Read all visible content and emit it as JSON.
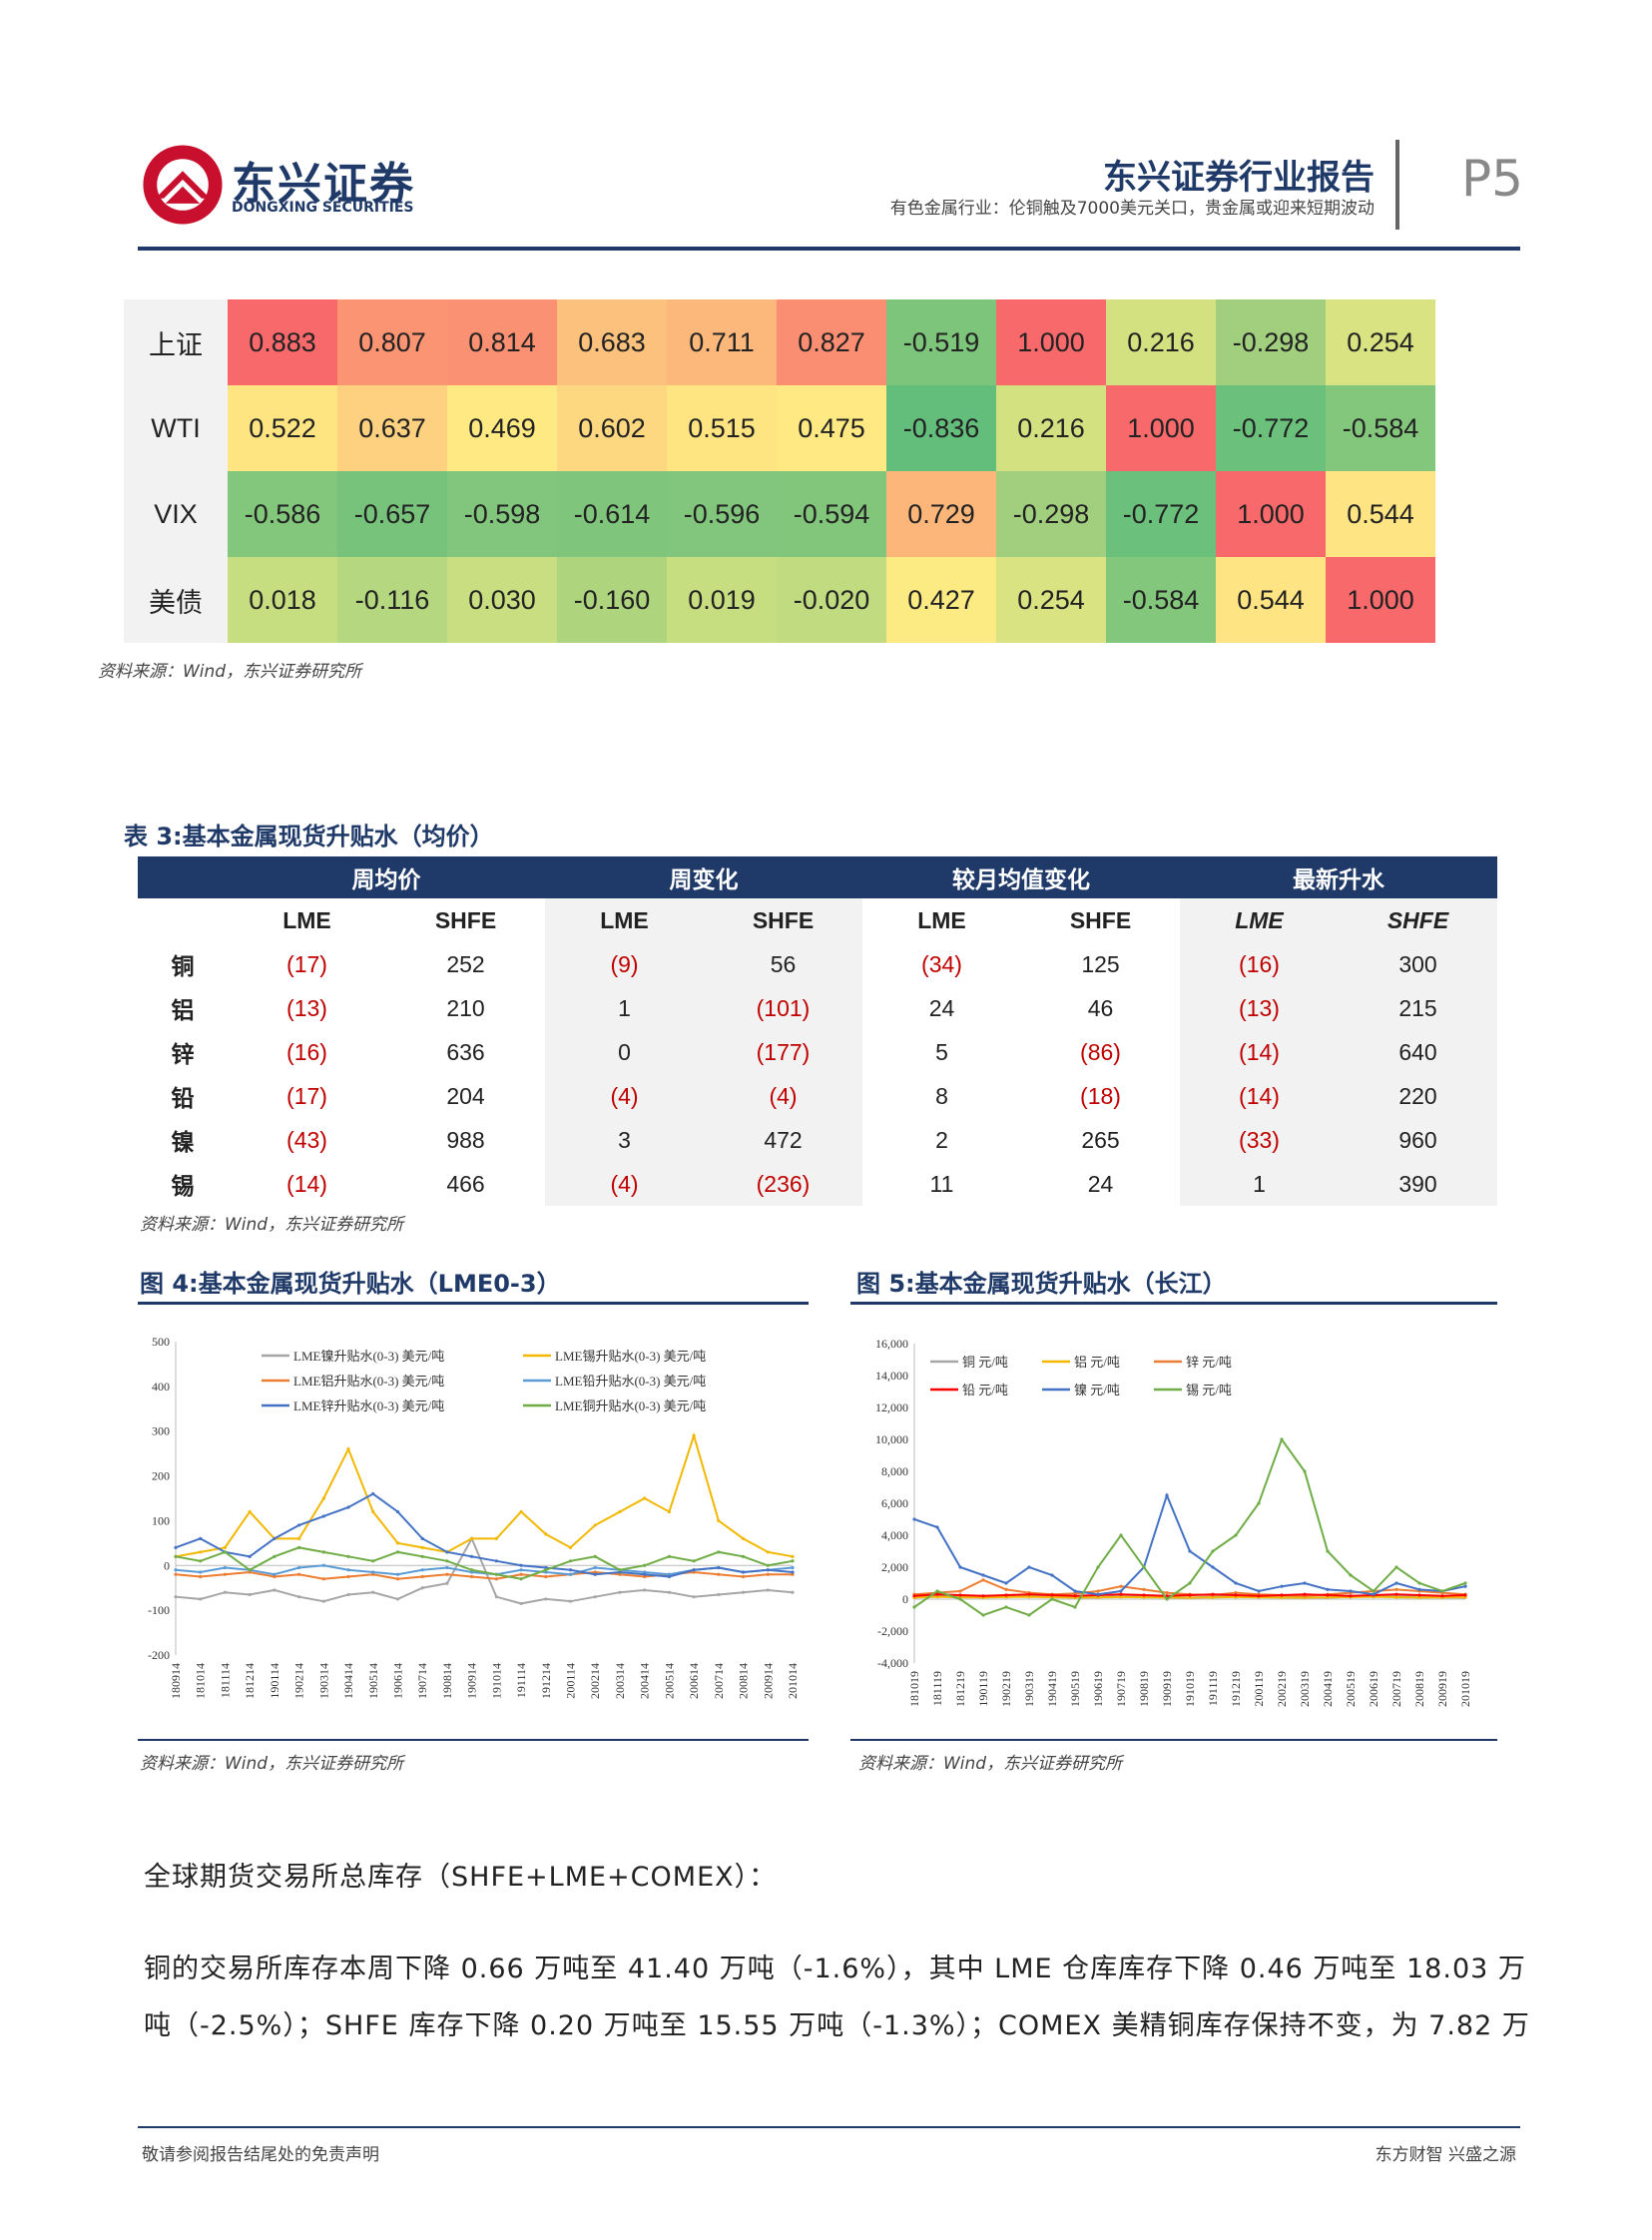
{
  "header": {
    "logo_cn": "东兴证券",
    "logo_en": "DONGXING SECURITIES",
    "report_title": "东兴证券行业报告",
    "report_subtitle": "有色金属行业：伦铜触及7000美元关口，贵金属或迎来短期波动",
    "page_number": "P5"
  },
  "correlation": {
    "rows": [
      {
        "label": "上证",
        "values": [
          "0.883",
          "0.807",
          "0.814",
          "0.683",
          "0.711",
          "0.827",
          "-0.519",
          "1.000",
          "0.216",
          "-0.298",
          "0.254"
        ],
        "colors": [
          "#f8696b",
          "#fa9473",
          "#fa9172",
          "#fcc17c",
          "#fbb87a",
          "#fa8e72",
          "#7ec57c",
          "#f8696b",
          "#d4e180",
          "#a2cf7e",
          "#d9e381"
        ]
      },
      {
        "label": "WTI",
        "values": [
          "0.522",
          "0.637",
          "0.469",
          "0.602",
          "0.515",
          "0.475",
          "-0.836",
          "0.216",
          "1.000",
          "-0.772",
          "-0.584"
        ],
        "colors": [
          "#fee582",
          "#fdd17f",
          "#fee983",
          "#fed880",
          "#fee582",
          "#fee983",
          "#63be7b",
          "#d4e180",
          "#f8696b",
          "#6bc07b",
          "#83c77c"
        ]
      },
      {
        "label": "VIX",
        "values": [
          "-0.586",
          "-0.657",
          "-0.598",
          "-0.614",
          "-0.596",
          "-0.594",
          "0.729",
          "-0.298",
          "-0.772",
          "1.000",
          "0.544"
        ],
        "colors": [
          "#83c77c",
          "#78c37b",
          "#81c67c",
          "#7fc57c",
          "#81c67c",
          "#82c67c",
          "#fcb67a",
          "#a2cf7e",
          "#6bc07b",
          "#f8696b",
          "#fee482"
        ]
      },
      {
        "label": "美债",
        "values": [
          "0.018",
          "-0.116",
          "0.030",
          "-0.160",
          "0.019",
          "-0.020",
          "0.427",
          "0.254",
          "-0.584",
          "0.544",
          "1.000"
        ],
        "colors": [
          "#c6dd80",
          "#b4d77f",
          "#c8de80",
          "#aed57e",
          "#c6dd80",
          "#c1db80",
          "#fcea83",
          "#d9e381",
          "#83c77c",
          "#fee482",
          "#f8696b"
        ]
      }
    ],
    "source": "资料来源：Wind，东兴证券研究所"
  },
  "table3": {
    "title": "表 3:基本金属现货升贴水（均价）",
    "groups": [
      "周均价",
      "周变化",
      "较月均值变化",
      "最新升水"
    ],
    "subheaders": [
      "LME",
      "SHFE",
      "LME",
      "SHFE",
      "LME",
      "SHFE",
      "LME",
      "SHFE"
    ],
    "rows": [
      {
        "name": "铜",
        "cells": [
          "(17)",
          "252",
          "(9)",
          "56",
          "(34)",
          "125",
          "(16)",
          "300"
        ]
      },
      {
        "name": "铝",
        "cells": [
          "(13)",
          "210",
          "1",
          "(101)",
          "24",
          "46",
          "(13)",
          "215"
        ]
      },
      {
        "name": "锌",
        "cells": [
          "(16)",
          "636",
          "0",
          "(177)",
          "5",
          "(86)",
          "(14)",
          "640"
        ]
      },
      {
        "name": "铅",
        "cells": [
          "(17)",
          "204",
          "(4)",
          "(4)",
          "8",
          "(18)",
          "(14)",
          "220"
        ]
      },
      {
        "name": "镍",
        "cells": [
          "(43)",
          "988",
          "3",
          "472",
          "2",
          "265",
          "(33)",
          "960"
        ]
      },
      {
        "name": "锡",
        "cells": [
          "(14)",
          "466",
          "(4)",
          "(236)",
          "11",
          "24",
          "1",
          "390"
        ]
      }
    ],
    "source": "资料来源：Wind，东兴证券研究所"
  },
  "fig4": {
    "title": "图 4:基本金属现货升贴水（LME0-3）",
    "source": "资料来源：Wind，东兴证券研究所"
  },
  "fig5": {
    "title": "图 5:基本金属现货升贴水（长江）",
    "source": "资料来源：Wind，东兴证券研究所"
  },
  "chart_data": [
    {
      "type": "line",
      "ylim": [
        -200,
        500
      ],
      "yticks": [
        "500",
        "400",
        "300",
        "200",
        "100",
        "0",
        "-100",
        "-200"
      ],
      "x": [
        "180914",
        "181014",
        "181114",
        "181214",
        "190114",
        "190214",
        "190314",
        "190414",
        "190514",
        "190614",
        "190714",
        "190814",
        "190914",
        "191014",
        "191114",
        "191214",
        "200114",
        "200214",
        "200314",
        "200414",
        "200514",
        "200614",
        "200714",
        "200814",
        "200914",
        "201014"
      ],
      "series": [
        {
          "name": "LME镍升贴水(0-3) 美元/吨",
          "color": "#a6a6a6",
          "values": [
            -70,
            -75,
            -60,
            -65,
            -55,
            -70,
            -80,
            -65,
            -60,
            -75,
            -50,
            -40,
            60,
            -70,
            -85,
            -75,
            -80,
            -70,
            -60,
            -55,
            -60,
            -70,
            -65,
            -60,
            -55,
            -60
          ]
        },
        {
          "name": "LME锡升贴水(0-3) 美元/吨",
          "color": "#f2b800",
          "values": [
            20,
            30,
            40,
            120,
            60,
            60,
            150,
            260,
            120,
            50,
            40,
            30,
            60,
            60,
            120,
            70,
            40,
            90,
            120,
            150,
            120,
            290,
            100,
            60,
            30,
            20
          ]
        },
        {
          "name": "LME铝升贴水(0-3) 美元/吨",
          "color": "#ed7d31",
          "values": [
            -20,
            -25,
            -20,
            -15,
            -25,
            -20,
            -30,
            -25,
            -20,
            -30,
            -25,
            -20,
            -25,
            -30,
            -20,
            -25,
            -20,
            -15,
            -20,
            -25,
            -20,
            -15,
            -20,
            -25,
            -20,
            -20
          ]
        },
        {
          "name": "LME铅升贴水(0-3) 美元/吨",
          "color": "#5b9bd5",
          "values": [
            -10,
            -15,
            -5,
            -10,
            -20,
            -5,
            0,
            -10,
            -15,
            -20,
            -10,
            -5,
            -15,
            -20,
            -10,
            -15,
            -20,
            -5,
            -10,
            -15,
            -20,
            -10,
            -5,
            -15,
            -10,
            -5
          ]
        },
        {
          "name": "LME锌升贴水(0-3) 美元/吨",
          "color": "#4472c4",
          "values": [
            40,
            60,
            30,
            20,
            60,
            90,
            110,
            130,
            160,
            120,
            60,
            30,
            20,
            10,
            0,
            -5,
            -10,
            -20,
            -15,
            -20,
            -25,
            -10,
            -5,
            -15,
            -10,
            -15
          ]
        },
        {
          "name": "LME铜升贴水(0-3) 美元/吨",
          "color": "#70ad47",
          "values": [
            20,
            10,
            30,
            -10,
            20,
            40,
            30,
            20,
            10,
            30,
            20,
            10,
            -10,
            -20,
            -30,
            -10,
            10,
            20,
            -10,
            0,
            20,
            10,
            30,
            20,
            0,
            10
          ]
        }
      ]
    },
    {
      "type": "line",
      "ylim": [
        -4000,
        16000
      ],
      "yticks": [
        "16,000",
        "14,000",
        "12,000",
        "10,000",
        "8,000",
        "6,000",
        "4,000",
        "2,000",
        "0",
        "-2,000",
        "-4,000"
      ],
      "x": [
        "181019",
        "181119",
        "181219",
        "190119",
        "190219",
        "190319",
        "190419",
        "190519",
        "190619",
        "190719",
        "190819",
        "190919",
        "191019",
        "191119",
        "191219",
        "200119",
        "200219",
        "200319",
        "200419",
        "200519",
        "200619",
        "200719",
        "200819",
        "200919",
        "201019"
      ],
      "series": [
        {
          "name": "铜 元/吨",
          "color": "#a6a6a6",
          "values": [
            100,
            200,
            150,
            120,
            180,
            200,
            150,
            100,
            120,
            180,
            150,
            120,
            100,
            150,
            200,
            180,
            150,
            120,
            100,
            150,
            200,
            180,
            150,
            120,
            100
          ]
        },
        {
          "name": "铝 元/吨",
          "color": "#f2b800",
          "values": [
            100,
            150,
            120,
            100,
            130,
            150,
            120,
            100,
            110,
            130,
            120,
            100,
            90,
            110,
            130,
            120,
            100,
            90,
            110,
            130,
            150,
            120,
            100,
            110,
            120
          ]
        },
        {
          "name": "锌 元/吨",
          "color": "#ed7d31",
          "values": [
            300,
            400,
            500,
            1200,
            600,
            400,
            300,
            350,
            500,
            800,
            600,
            400,
            300,
            250,
            400,
            300,
            250,
            200,
            300,
            400,
            500,
            600,
            500,
            400,
            300
          ]
        },
        {
          "name": "铅 元/吨",
          "color": "#ff0000",
          "values": [
            200,
            300,
            250,
            200,
            250,
            300,
            250,
            200,
            250,
            300,
            250,
            200,
            250,
            300,
            250,
            200,
            250,
            300,
            250,
            200,
            250,
            300,
            250,
            200,
            250
          ]
        },
        {
          "name": "镍 元/吨",
          "color": "#4472c4",
          "values": [
            5000,
            4500,
            2000,
            1500,
            1000,
            2000,
            1500,
            500,
            300,
            500,
            2000,
            6500,
            3000,
            2000,
            1000,
            500,
            800,
            1000,
            600,
            500,
            300,
            1000,
            600,
            500,
            800
          ]
        },
        {
          "name": "锡 元/吨",
          "color": "#70ad47",
          "values": [
            -500,
            500,
            0,
            -1000,
            -500,
            -1000,
            0,
            -500,
            2000,
            4000,
            2000,
            0,
            1000,
            3000,
            4000,
            6000,
            10000,
            8000,
            3000,
            1500,
            500,
            2000,
            1000,
            500,
            1000
          ]
        }
      ]
    }
  ],
  "body": {
    "heading": "全球期货交易所总库存（SHFE+LME+COMEX）：",
    "line1": "铜的交易所库存本周下降 0.66 万吨至 41.40 万吨（-1.6%），其中 LME 仓库库存下降 0.46 万吨至 18.03 万",
    "line2": "吨（-2.5%）；SHFE 库存下降 0.20 万吨至 15.55 万吨（-1.3%）；COMEX 美精铜库存保持不变，为 7.82 万"
  },
  "footer": {
    "left": "敬请参阅报告结尾处的免责声明",
    "right": "东方财智 兴盛之源"
  }
}
